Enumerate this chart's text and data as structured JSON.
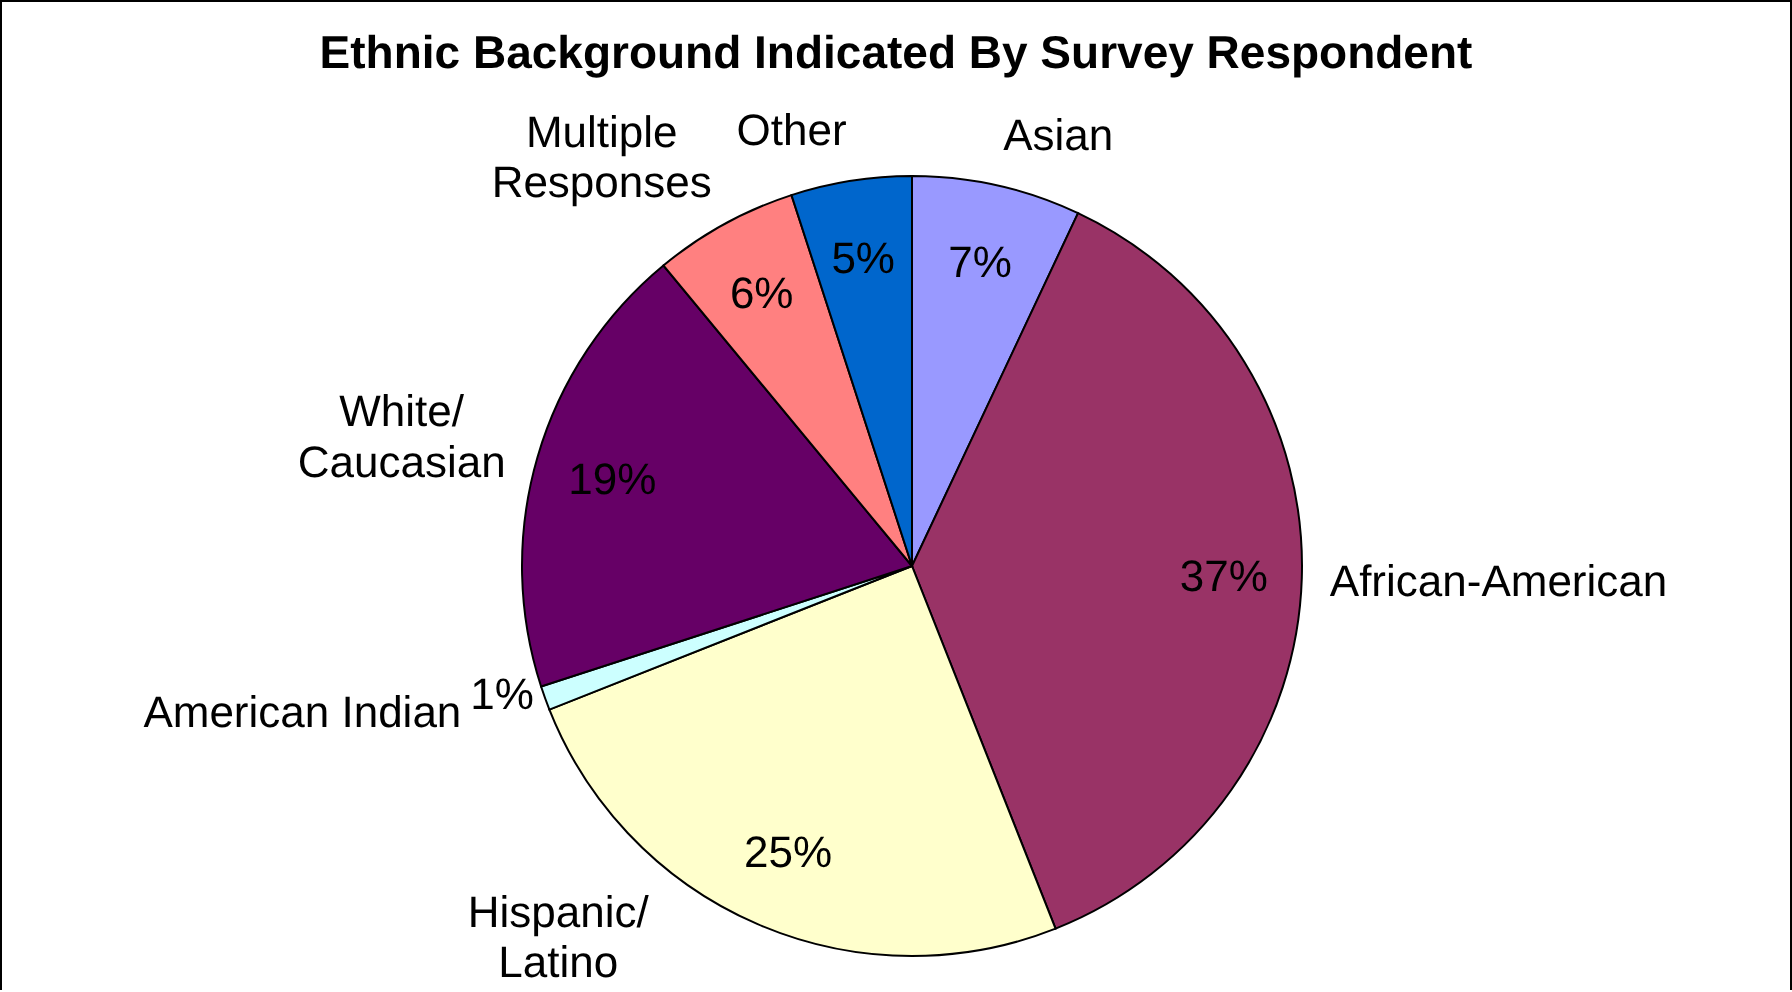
{
  "chart_data": {
    "type": "pie",
    "title": "Ethnic Background Indicated By Survey Respondent",
    "categories": [
      "Asian",
      "African-American",
      "Hispanic/\nLatino",
      "American Indian",
      "White/\nCaucasian",
      "Multiple\nResponses",
      "Other"
    ],
    "values": [
      7,
      37,
      25,
      1,
      19,
      6,
      5
    ],
    "colors": [
      "#9999ff",
      "#993366",
      "#ffffcc",
      "#ccffff",
      "#660066",
      "#ff8080",
      "#0066cc"
    ],
    "value_labels": [
      "7%",
      "37%",
      "25%",
      "1%",
      "19%",
      "6%",
      "5%"
    ]
  }
}
